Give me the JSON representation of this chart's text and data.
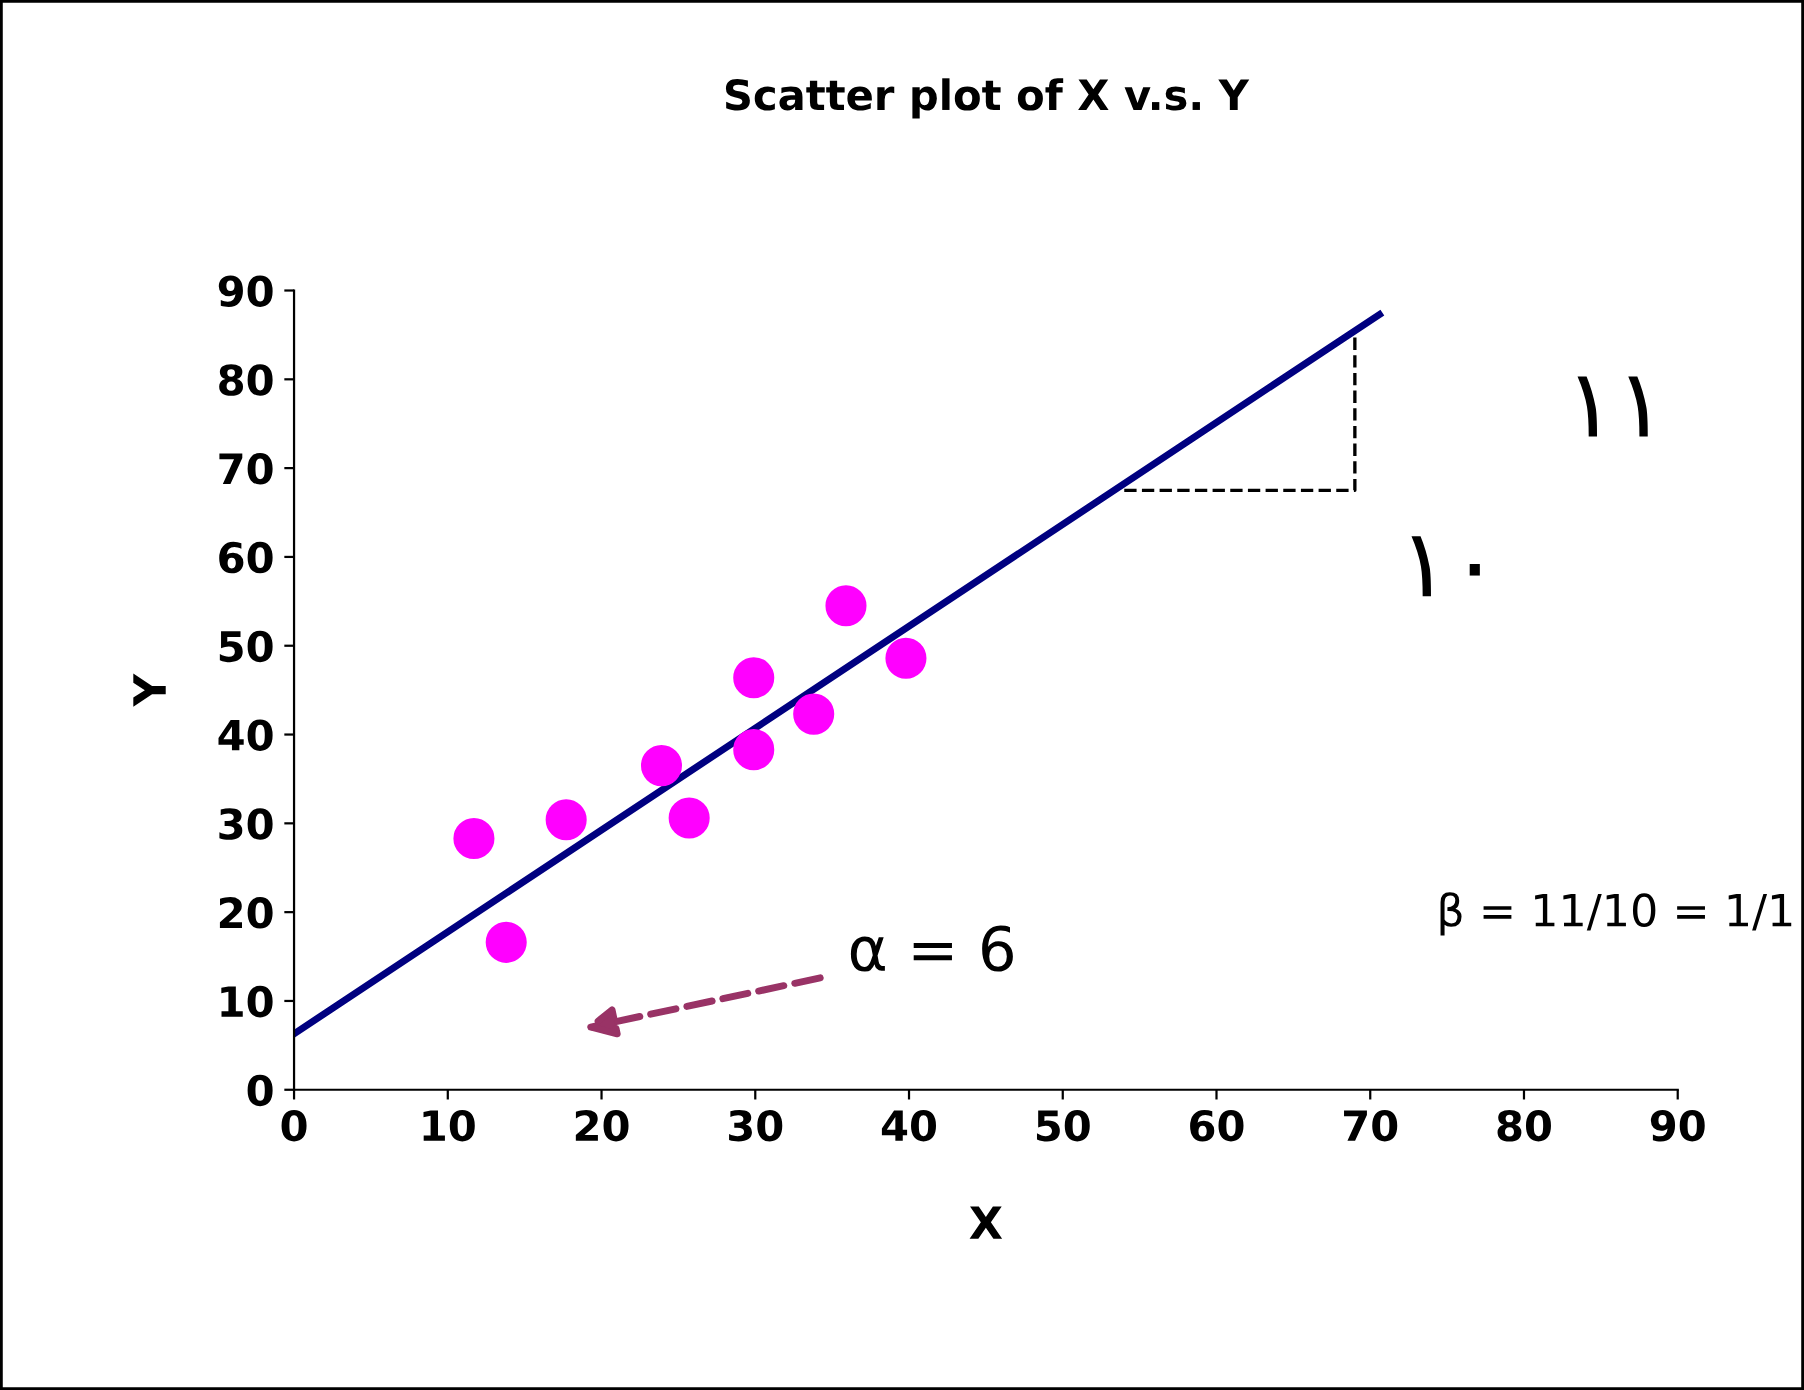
{
  "chart_data": {
    "type": "scatter",
    "title": "Scatter plot of X v.s. Y",
    "xlabel": "X",
    "ylabel": "Y",
    "xlim": [
      0,
      90
    ],
    "ylim": [
      0,
      90
    ],
    "xticks": [
      0,
      10,
      20,
      30,
      40,
      50,
      60,
      70,
      80,
      90
    ],
    "yticks": [
      0,
      10,
      20,
      30,
      40,
      50,
      60,
      70,
      80,
      90
    ],
    "grid": false,
    "series": [
      {
        "color": "#ff00ff",
        "marker": "circle",
        "x": [
          11.7,
          13.8,
          17.7,
          23.9,
          25.7,
          29.9,
          29.9,
          33.8,
          35.9,
          39.8
        ],
        "values": [
          28.3,
          16.6,
          30.4,
          36.5,
          30.6,
          46.4,
          38.3,
          42.3,
          54.5,
          48.6
        ]
      },
      {
        "type": "line",
        "color": "#000080",
        "line_style": "solid",
        "x": [
          0,
          70.6
        ],
        "values": [
          6.3,
          87.3
        ]
      },
      {
        "type": "line",
        "color": "#000000",
        "line_style": "dashed",
        "x": [
          54,
          69,
          69
        ],
        "values": [
          67.5,
          67.5,
          85
        ]
      }
    ],
    "annotations": [
      "α = 6",
      "۱۱",
      "۱۰",
      "β = 11/10 = 1/1"
    ]
  }
}
